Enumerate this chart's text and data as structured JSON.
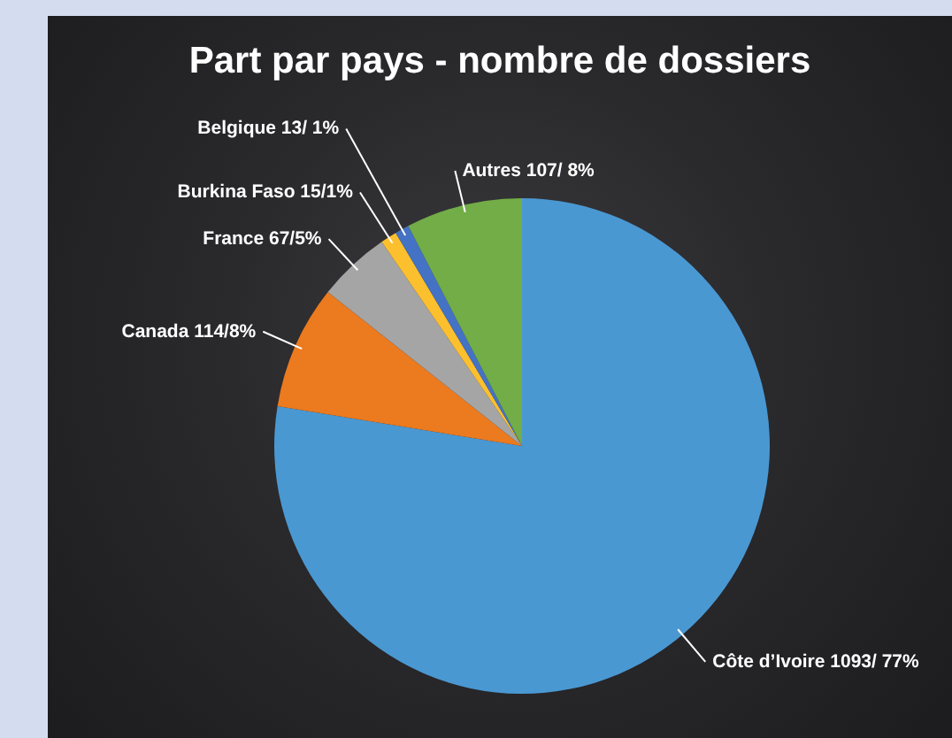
{
  "chart_data": {
    "type": "pie",
    "title": "Part par pays - nombre de dossiers",
    "categories": [
      "Côte d’Ivoire",
      "Canada",
      "France",
      "Burkina Faso",
      "Belgique",
      "Autres"
    ],
    "values": [
      1093,
      114,
      67,
      15,
      13,
      107
    ],
    "value_labels": [
      "1093/ 77%",
      "114/8%",
      "67/5%",
      "15/1%",
      "13/ 1%",
      "107/ 8%"
    ],
    "colors": [
      "#4a98d2",
      "#ec7a1e",
      "#a5a5a5",
      "#fcc02e",
      "#4472c4",
      "#72ad47"
    ]
  }
}
